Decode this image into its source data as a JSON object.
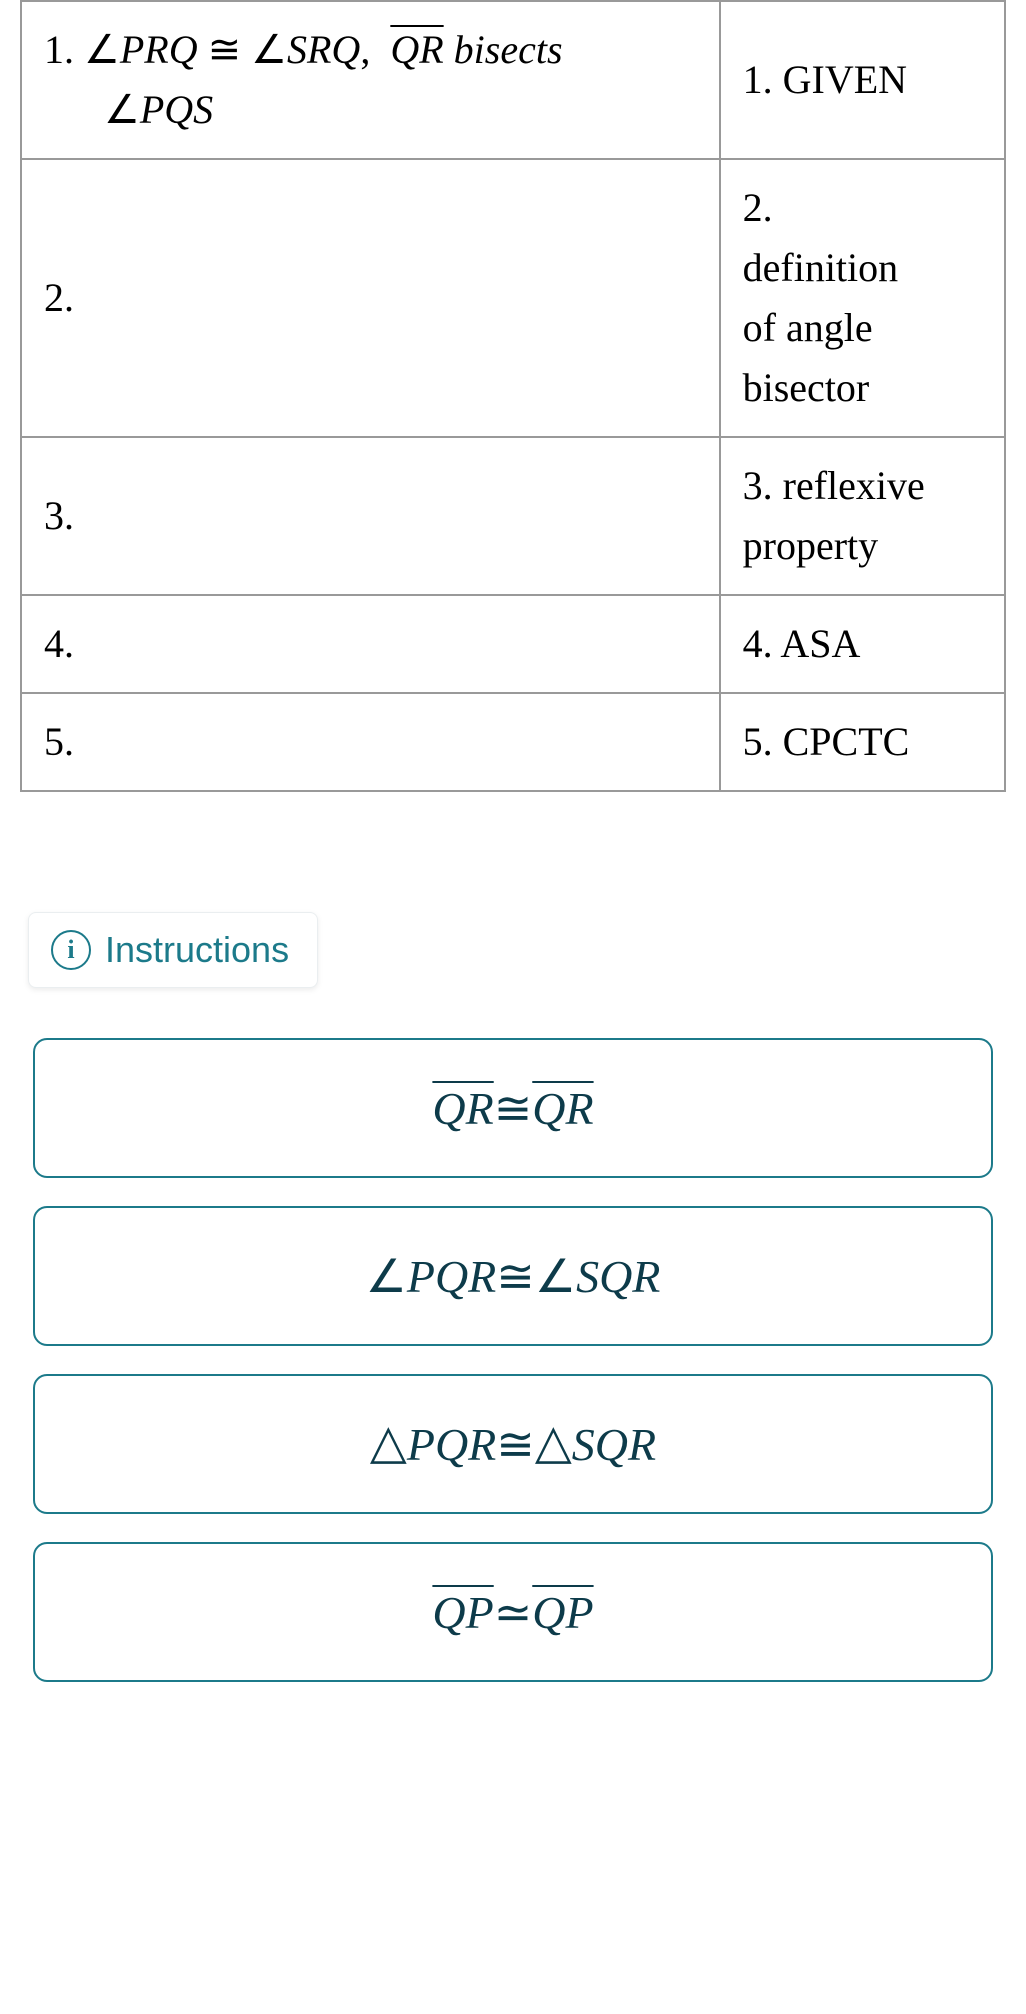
{
  "table": {
    "rows": [
      {
        "left_html": "1. <span class='angle'>∠</span><span class='math-italic'>PRQ</span> <span class='cong'>≅</span> <span class='angle'>∠</span><span class='math-italic'>SRQ</span>,&nbsp; <span class='math-italic overline'>QR</span> <span class='math-italic'>bisects</span><br><span class='indent'><span class='angle'>∠</span><span class='math-italic'>PQS</span></span>",
        "right": "1. GIVEN"
      },
      {
        "left_html": "2.",
        "right_html": "2.<br>definition<br>of angle<br>bisector"
      },
      {
        "left_html": "3.",
        "right_html": "3. reflexive<br>property"
      },
      {
        "left_html": "4.",
        "right": "4. ASA"
      },
      {
        "left_html": "5.",
        "right": "5. CPCTC"
      }
    ]
  },
  "instructions_label": "Instructions",
  "info_icon_glyph": "i",
  "choices": [
    "<span class='overline'>QR</span> <span class='cong'>≅</span> <span class='overline'>QR</span>",
    "<span class='angle'>∠</span>PQR <span class='cong'>≅</span> <span class='angle'>∠</span>SQR",
    "<span class='triangle'>△</span> PQR <span class='cong'>≅</span><span class='triangle'>△</span> SQR",
    "<span class='overline'>QP</span> <span class='cong'>≃</span> <span class='overline'>QP</span>"
  ],
  "colors": {
    "table_border": "#999999",
    "text": "#000000",
    "accent": "#1c7a8a",
    "choice_text": "#0d3b4a",
    "background": "#ffffff"
  }
}
